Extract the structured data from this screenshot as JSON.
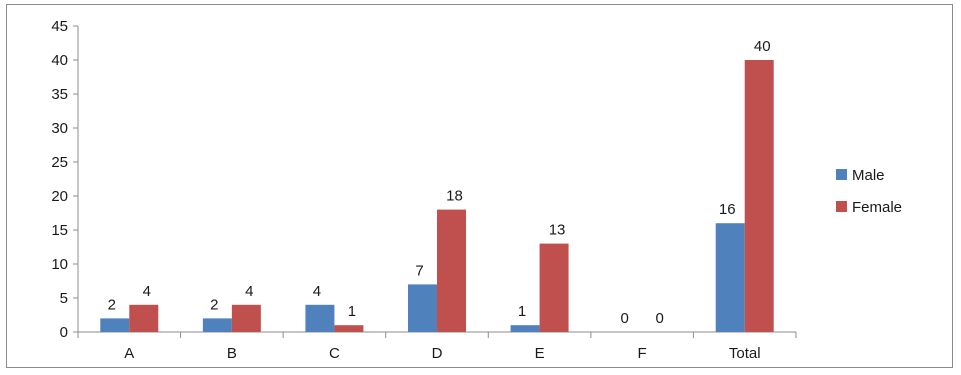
{
  "chart_data": {
    "type": "bar",
    "title": "",
    "xlabel": "",
    "ylabel": "",
    "categories": [
      "A",
      "B",
      "C",
      "D",
      "E",
      "F",
      "Total"
    ],
    "series": [
      {
        "name": "Male",
        "values": [
          2,
          2,
          4,
          7,
          1,
          0,
          16
        ],
        "color": "#4f81bd"
      },
      {
        "name": "Female",
        "values": [
          4,
          4,
          1,
          18,
          13,
          0,
          40
        ],
        "color": "#c0504d"
      }
    ],
    "ylim": [
      0,
      45
    ],
    "yticks": [
      0,
      5,
      10,
      15,
      20,
      25,
      30,
      35,
      40,
      45
    ],
    "grid": false,
    "data_labels": true,
    "legend": {
      "placement": "right",
      "entries": [
        "Male",
        "Female"
      ]
    }
  }
}
